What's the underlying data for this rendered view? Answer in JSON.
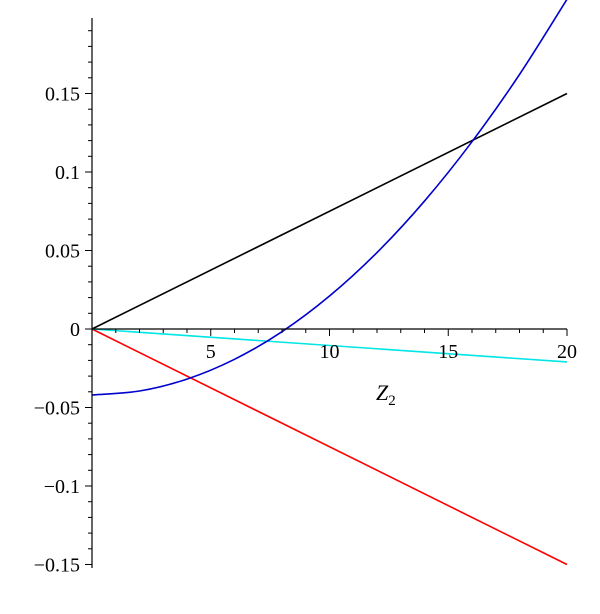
{
  "chart_data": {
    "type": "line",
    "xlabel": "Z",
    "xlabel_subscript": "2",
    "ylabel": "",
    "xlim": [
      0,
      20
    ],
    "ylim": [
      -0.15,
      0.19
    ],
    "xticks": [
      {
        "value": 5,
        "label": "5"
      },
      {
        "value": 10,
        "label": "10"
      },
      {
        "value": 15,
        "label": "15"
      },
      {
        "value": 20,
        "label": "20"
      }
    ],
    "yticks": [
      {
        "value": 0.15,
        "label": "0.15"
      },
      {
        "value": 0.1,
        "label": "0.1"
      },
      {
        "value": 0.05,
        "label": "0.05"
      },
      {
        "value": 0,
        "label": "0"
      },
      {
        "value": -0.05,
        "label": "−0.05"
      },
      {
        "value": -0.1,
        "label": "−0.1"
      },
      {
        "value": -0.15,
        "label": "−0.15"
      }
    ],
    "grid": false,
    "series": [
      {
        "color": "#000000",
        "x": [
          0,
          20
        ],
        "y": [
          0,
          0.15
        ]
      },
      {
        "color": "#ff0000",
        "x": [
          0,
          20
        ],
        "y": [
          0,
          -0.15
        ]
      },
      {
        "color": "#00e5e5",
        "x": [
          0,
          20
        ],
        "y": [
          0,
          -0.021
        ]
      },
      {
        "color": "#0000cc",
        "x": [
          0,
          2,
          4,
          6,
          8,
          10,
          12,
          14,
          16,
          18,
          20
        ],
        "y": [
          -0.042,
          -0.0395,
          -0.0319,
          -0.0193,
          -0.0017,
          0.021,
          0.0487,
          0.0815,
          0.1193,
          0.1621,
          0.21
        ]
      }
    ]
  }
}
